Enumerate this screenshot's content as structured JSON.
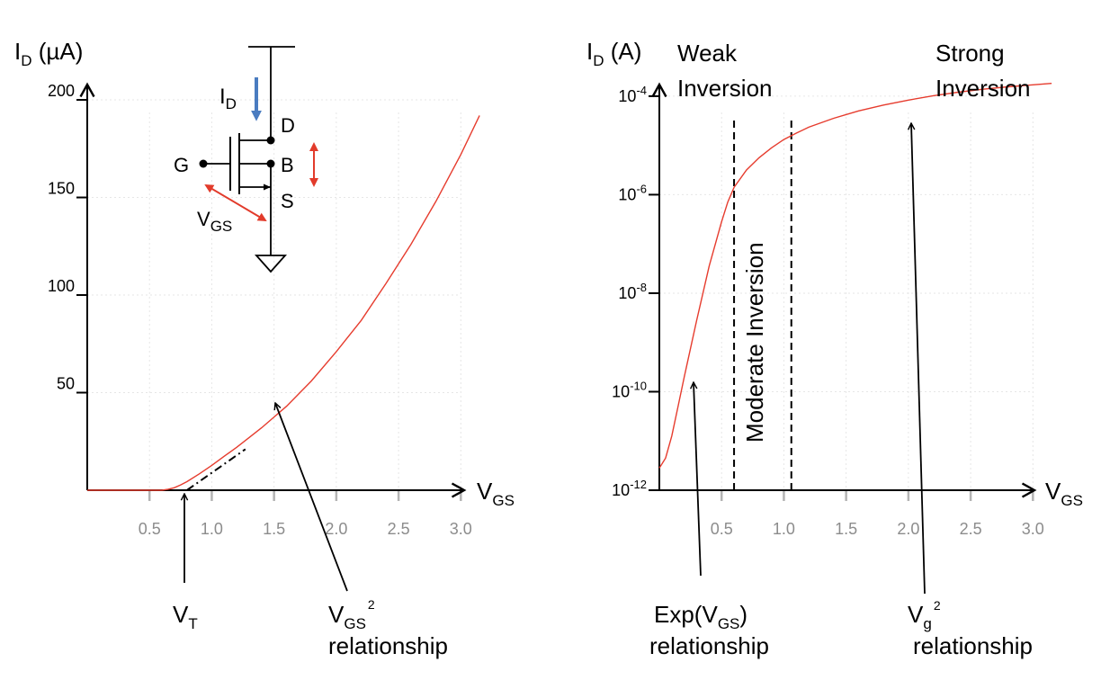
{
  "colors": {
    "curve": "#e63c2e",
    "axis": "#000000",
    "tick_label": "#8c8c8c",
    "tick_mark": "#b4b4b4",
    "grid": "#e6e6e6",
    "current_arrow": "#4a7cc0",
    "voltage_arrow": "#e23b2b"
  },
  "chart_data": [
    {
      "type": "line",
      "title": "",
      "xlabel": {
        "main": "V",
        "sub": "GS"
      },
      "ylabel": {
        "main": "I",
        "sub": "D",
        "unit": " (µA)"
      },
      "xlim": [
        0,
        3.2
      ],
      "ylim": [
        0,
        212
      ],
      "x_ticks": [
        0.5,
        1.0,
        1.5,
        2.0,
        2.5,
        3.0
      ],
      "x_tick_labels": [
        "0.5",
        "1.0",
        "1.5",
        "2.0",
        "2.5",
        "3.0"
      ],
      "y_ticks": [
        50,
        100,
        150,
        200
      ],
      "y_tick_labels": [
        "50",
        "100",
        "150",
        "200"
      ],
      "grid": true,
      "series": [
        {
          "x": [
            0.0,
            0.4,
            0.6,
            0.65,
            0.7,
            0.75,
            0.8,
            0.9,
            1.0,
            1.1,
            1.2,
            1.3,
            1.4,
            1.5,
            1.6,
            1.8,
            2.0,
            2.2,
            2.4,
            2.6,
            2.8,
            3.0,
            3.15
          ],
          "y": [
            0,
            0,
            0,
            0.5,
            1.3,
            2.7,
            4.4,
            8.4,
            12.7,
            17.4,
            22.0,
            27.0,
            32.0,
            37.5,
            43.0,
            56.0,
            71.0,
            87.0,
            106.0,
            126.0,
            148.0,
            172.0,
            192.0
          ]
        }
      ],
      "tangent": {
        "x": [
          0.8,
          1.27
        ],
        "y": [
          0,
          21
        ]
      },
      "annotations": {
        "vt": {
          "main": "V",
          "sub": "T"
        },
        "vgs2": {
          "main": "V",
          "sub": "GS",
          "sup": "2",
          "line2": "relationship"
        }
      },
      "inset": {
        "current": {
          "main": "I",
          "sub": "D"
        },
        "d": "D",
        "g": "G",
        "b": "B",
        "s": "S",
        "vgs": {
          "main": "V",
          "sub": "GS"
        }
      }
    },
    {
      "type": "line",
      "title": "",
      "xlabel": {
        "main": "V",
        "sub": "GS"
      },
      "ylabel": {
        "main": "I",
        "sub": "D",
        "unit": " (A)"
      },
      "xlim": [
        0,
        3.2
      ],
      "ylim": [
        -12,
        -3.6
      ],
      "yscale": "log",
      "x_ticks": [
        0.5,
        1.0,
        1.5,
        2.0,
        2.5,
        3.0
      ],
      "x_tick_labels": [
        "0.5",
        "1.0",
        "1.5",
        "2.0",
        "2.5",
        "3.0"
      ],
      "y_ticks": [
        -12,
        -10,
        -8,
        -6,
        -4
      ],
      "y_tick_labels": [
        {
          "base": "10",
          "exp": "-12"
        },
        {
          "base": "10",
          "exp": "-10"
        },
        {
          "base": "10",
          "exp": "-8"
        },
        {
          "base": "10",
          "exp": "-6"
        },
        {
          "base": "10",
          "exp": "-4"
        }
      ],
      "grid": true,
      "series": [
        {
          "x": [
            0.0,
            0.05,
            0.1,
            0.15,
            0.2,
            0.3,
            0.4,
            0.5,
            0.55,
            0.6,
            0.7,
            0.8,
            0.9,
            1.0,
            1.1,
            1.2,
            1.4,
            1.6,
            1.8,
            2.0,
            2.2,
            2.4,
            2.6,
            2.8,
            3.0,
            3.15
          ],
          "y": [
            -11.55,
            -11.35,
            -10.9,
            -10.3,
            -9.7,
            -8.55,
            -7.45,
            -6.55,
            -6.15,
            -5.85,
            -5.5,
            -5.25,
            -5.05,
            -4.88,
            -4.75,
            -4.63,
            -4.45,
            -4.3,
            -4.18,
            -4.08,
            -3.99,
            -3.92,
            -3.86,
            -3.81,
            -3.77,
            -3.74
          ]
        }
      ],
      "region_bounds": [
        0.6,
        1.06
      ],
      "annotations": {
        "weak": [
          "Weak",
          "Inversion"
        ],
        "strong": [
          "Strong",
          "Inversion"
        ],
        "moderate": "Moderate Inversion",
        "exp": {
          "pre": "Exp(V",
          "sub": "GS",
          "post": ")",
          "line2": "relationship"
        },
        "vg2": {
          "main": "V",
          "sub": "g",
          "sup": "2",
          "line2": "relationship"
        }
      }
    }
  ]
}
